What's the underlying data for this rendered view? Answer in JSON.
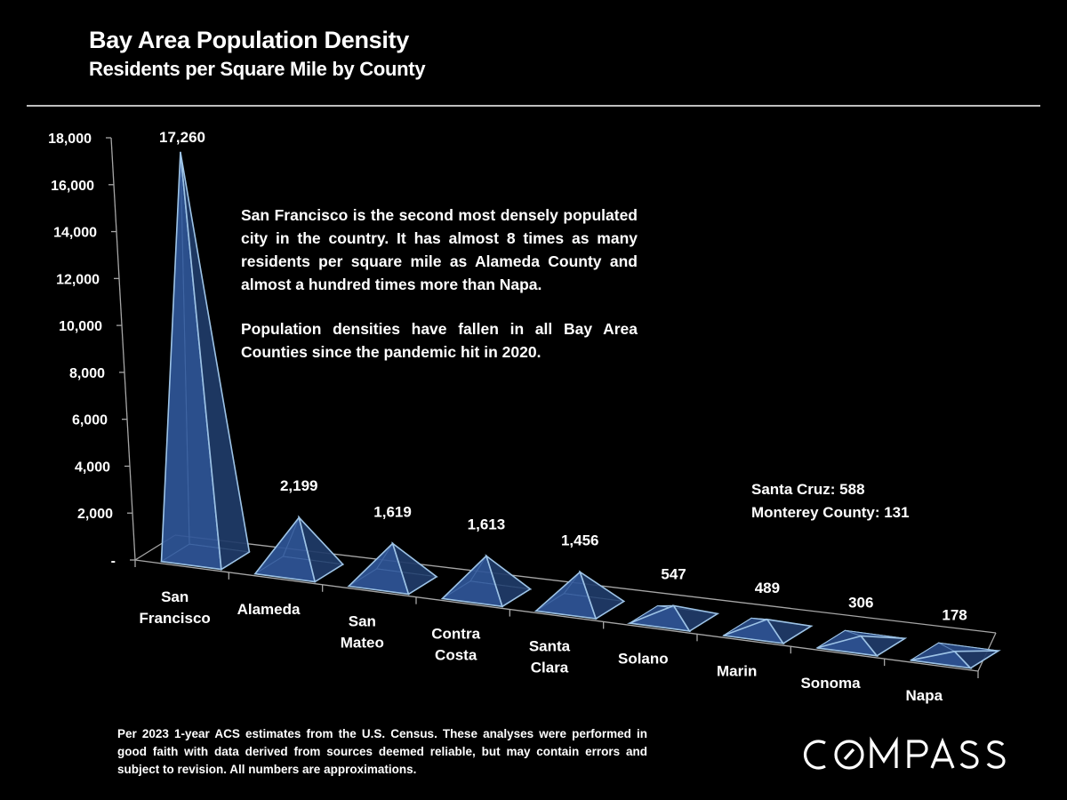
{
  "header": {
    "title": "Bay Area Population Density",
    "subtitle": "Residents per Square Mile by County"
  },
  "annotation": {
    "paragraphs": [
      "San Francisco is the second most densely populated city in the country. It has almost 8 times as many residents per square mile as Alameda County and almost a hundred times more than Napa.",
      "Population densities have fallen in all Bay Area Counties since the pandemic hit in 2020."
    ]
  },
  "side_note": {
    "lines": [
      "Santa Cruz:  588",
      "Monterey County:  131"
    ]
  },
  "footnote": "Per 2023 1-year ACS estimates from the U.S. Census. These analyses were performed in good faith with data derived from sources deemed reliable, but may contain errors and subject to revision. All numbers are approximations.",
  "logo": {
    "text": "COMPASS"
  },
  "colors": {
    "pyramid_fill": "#2f5597",
    "pyramid_edge": "#9dc3e6",
    "axis": "#a6a6a6"
  },
  "chart_data": {
    "type": "bar",
    "style": "3d-pyramid",
    "title": "Bay Area Population Density",
    "subtitle": "Residents per Square Mile by County",
    "xlabel": "",
    "ylabel": "",
    "ylim": [
      0,
      18000
    ],
    "yticks": [
      0,
      2000,
      4000,
      6000,
      8000,
      10000,
      12000,
      14000,
      16000,
      18000
    ],
    "ytick_labels": [
      "-",
      "2,000",
      "4,000",
      "6,000",
      "8,000",
      "10,000",
      "12,000",
      "14,000",
      "16,000",
      "18,000"
    ],
    "categories": [
      [
        "San",
        "Francisco"
      ],
      [
        "Alameda"
      ],
      [
        "San",
        "Mateo"
      ],
      [
        "Contra",
        "Costa"
      ],
      [
        "Santa",
        "Clara"
      ],
      [
        "Solano"
      ],
      [
        "Marin"
      ],
      [
        "Sonoma"
      ],
      [
        "Napa"
      ]
    ],
    "values": [
      17260,
      2199,
      1619,
      1613,
      1456,
      547,
      489,
      306,
      178
    ],
    "value_labels": [
      "17,260",
      "2,199",
      "1,619",
      "1,613",
      "1,456",
      "547",
      "489",
      "306",
      "178"
    ],
    "grid": false,
    "legend": "none"
  }
}
